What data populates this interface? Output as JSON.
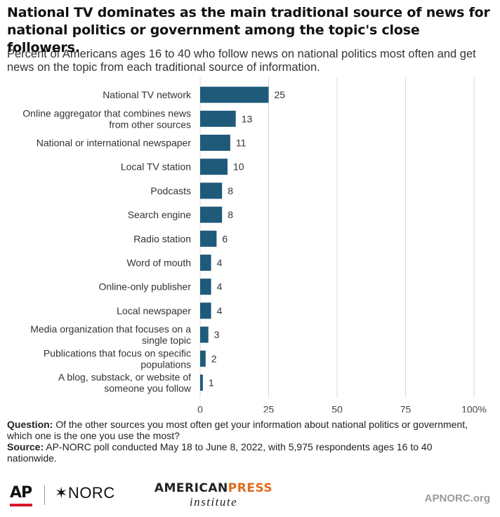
{
  "title": "National TV dominates as the main traditional source of news for national politics or government among the topic's close followers.",
  "subtitle": "Percent of Americans ages 16 to 40 who follow news on national politics most often and get news on the topic from each traditional source of information.",
  "chart_data": {
    "type": "bar",
    "orientation": "horizontal",
    "categories": [
      [
        "National TV network"
      ],
      [
        "Online aggregator that combines news",
        "from other sources"
      ],
      [
        "National or international newspaper"
      ],
      [
        "Local TV station"
      ],
      [
        "Podcasts"
      ],
      [
        "Search engine"
      ],
      [
        "Radio station"
      ],
      [
        "Word of mouth"
      ],
      [
        "Online-only publisher "
      ],
      [
        "Local newspaper"
      ],
      [
        "Media organization that focuses on a",
        "single topic"
      ],
      [
        "Publications that focus on specific",
        "populations"
      ],
      [
        "A blog, substack, or website of",
        "someone you follow"
      ]
    ],
    "values": [
      25,
      13,
      11,
      10,
      8,
      8,
      6,
      4,
      4,
      4,
      3,
      2,
      1
    ],
    "xlim": [
      0,
      100
    ],
    "xticks": [
      "0",
      "25",
      "50",
      "75",
      "100%"
    ],
    "xtick_values": [
      0,
      25,
      50,
      75,
      100
    ],
    "grid": true,
    "bar_color": "#1f5a7a",
    "grid_color": "#d9d9d9"
  },
  "notes": {
    "question_label": "Question:",
    "question_text": " Of the other sources you most often get your information about national politics or government, which one is the one you use the most?",
    "source_label": "Source:",
    "source_text": " AP-NORC poll conducted May 18 to June 8, 2022, with 5,975 respondents ages 16 to 40 nationwide."
  },
  "footer": {
    "ap_logo": "AP",
    "norc_logo": "✶NORC",
    "api_american": "AMERICAN",
    "api_press": "PRESS",
    "api_institute": "institute",
    "url": "APNORC.org"
  }
}
